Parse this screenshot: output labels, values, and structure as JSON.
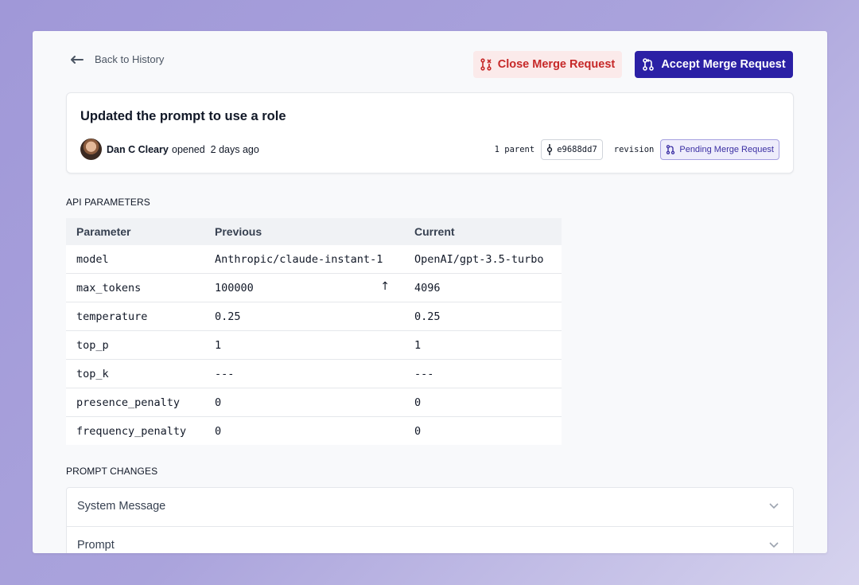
{
  "nav": {
    "back_label": "Back to History"
  },
  "actions": {
    "close_label": "Close Merge Request",
    "accept_label": "Accept Merge Request"
  },
  "merge_request": {
    "title": "Updated the prompt to use a role",
    "author": "Dan C Cleary",
    "opened_text": "opened  2 days ago",
    "parent_label": "1 parent",
    "commit_hash": "e9688dd7",
    "revision_label": "revision",
    "status": "Pending Merge Request"
  },
  "api_parameters": {
    "section_title": "API PARAMETERS",
    "headers": [
      "Parameter",
      "Previous",
      "Current"
    ],
    "rows": [
      {
        "parameter": "model",
        "previous": "Anthropic/claude-instant-1",
        "current": "OpenAI/gpt-3.5-turbo"
      },
      {
        "parameter": "max_tokens",
        "previous": "100000",
        "current": "4096",
        "changed_indicator": "↑"
      },
      {
        "parameter": "temperature",
        "previous": "0.25",
        "current": "0.25"
      },
      {
        "parameter": "top_p",
        "previous": "1",
        "current": "1"
      },
      {
        "parameter": "top_k",
        "previous": "---",
        "current": "---"
      },
      {
        "parameter": "presence_penalty",
        "previous": "0",
        "current": "0"
      },
      {
        "parameter": "frequency_penalty",
        "previous": "0",
        "current": "0"
      }
    ]
  },
  "prompt_changes": {
    "section_title": "PROMPT CHANGES",
    "items": [
      {
        "label": "System Message"
      },
      {
        "label": "Prompt"
      }
    ]
  },
  "colors": {
    "accent": "#2b20a5",
    "danger": "#c62828",
    "danger_bg": "#fbeaea"
  },
  "icons": [
    "arrow-left-icon",
    "git-pull-request-closed-icon",
    "git-pull-request-icon",
    "git-commit-icon",
    "chevron-down-icon",
    "arrow-up-icon"
  ]
}
